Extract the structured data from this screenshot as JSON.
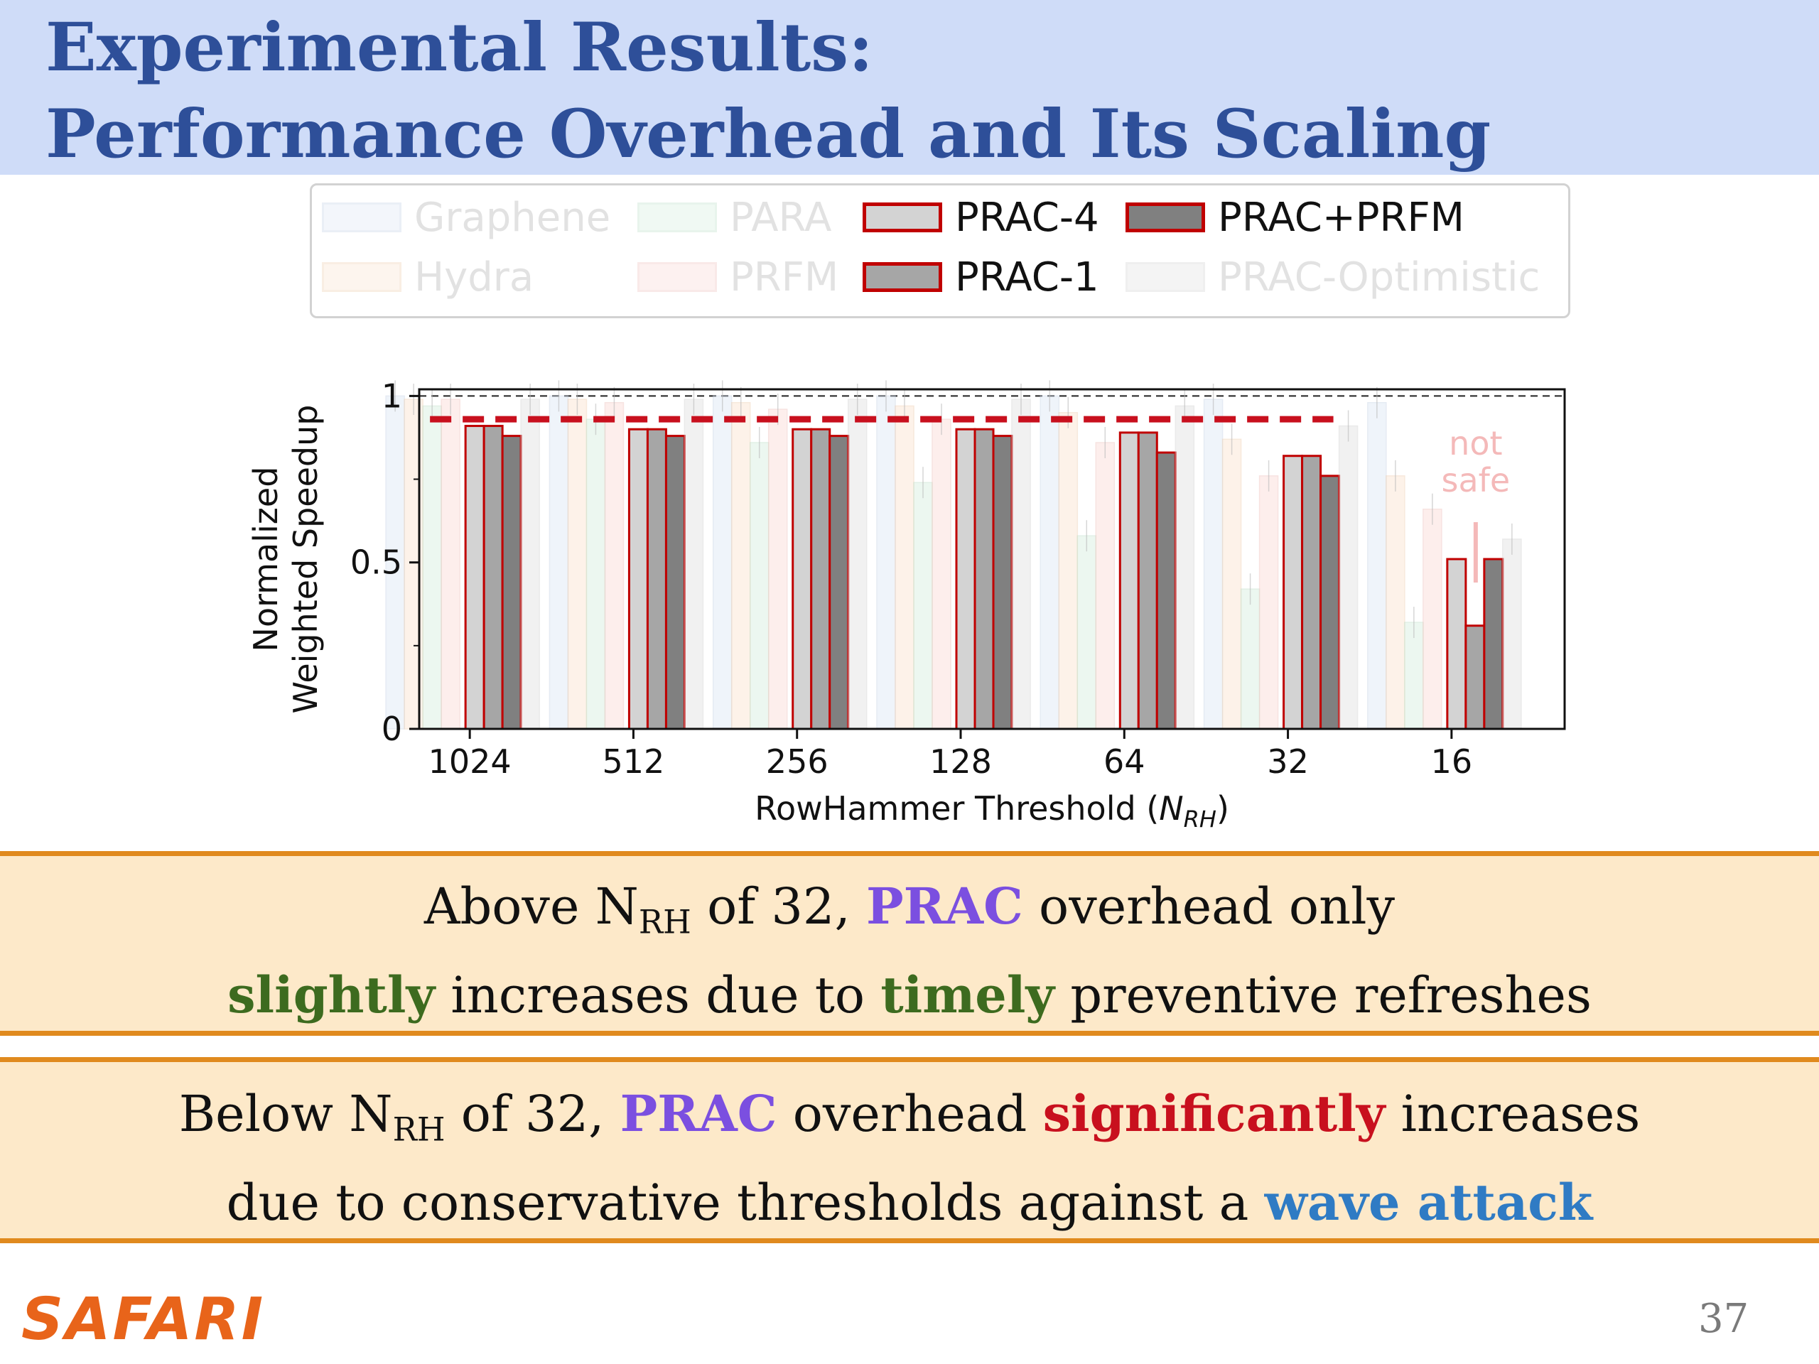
{
  "title": {
    "line1": "Experimental Results:",
    "line2": "Performance Overhead and Its Scaling"
  },
  "legend": [
    {
      "label": "Graphene",
      "state": "faded",
      "fill": "#dde7f4",
      "stroke": "#c6d3e6"
    },
    {
      "label": "PARA",
      "state": "faded",
      "fill": "#d7efdf",
      "stroke": "#bfe0c9"
    },
    {
      "label": "PRAC-4",
      "state": "active",
      "fill": "#d3d3d3",
      "stroke": "#c00000"
    },
    {
      "label": "PRAC+PRFM",
      "state": "active",
      "fill": "#808080",
      "stroke": "#c00000"
    },
    {
      "label": "Hydra",
      "state": "faded",
      "fill": "#fbe3cf",
      "stroke": "#efcfb2"
    },
    {
      "label": "PRFM",
      "state": "faded",
      "fill": "#fbdad7",
      "stroke": "#efc2be"
    },
    {
      "label": "PRAC-1",
      "state": "active",
      "fill": "#a6a6a6",
      "stroke": "#c00000"
    },
    {
      "label": "PRAC-Optimistic",
      "state": "faded",
      "fill": "#e2e2e2",
      "stroke": "#d2d2d2"
    }
  ],
  "chart_data": {
    "type": "bar",
    "xlabel_main": "RowHammer Threshold (",
    "xlabel_var": "N",
    "xlabel_sub": "RH",
    "xlabel_end": ")",
    "ylabel": [
      "Normalized",
      "Weighted Speedup"
    ],
    "ylim": [
      0,
      1.02
    ],
    "yticks": [
      "0",
      "0.5",
      "1"
    ],
    "categories": [
      "1024",
      "512",
      "256",
      "128",
      "64",
      "32",
      "16"
    ],
    "reference_line": 1.0,
    "prac_optimistic_line": {
      "value": 0.93,
      "color": "#c8101e",
      "from": "1024",
      "to": "32"
    },
    "annotation": {
      "lines": [
        "not",
        "safe"
      ],
      "category": "16"
    },
    "series": [
      {
        "name": "Graphene",
        "faded": true,
        "values": [
          1.0,
          1.0,
          1.0,
          1.0,
          1.0,
          0.99,
          0.98
        ]
      },
      {
        "name": "Hydra",
        "faded": true,
        "values": [
          0.99,
          0.99,
          0.98,
          0.97,
          0.95,
          0.87,
          0.76
        ]
      },
      {
        "name": "PARA",
        "faded": true,
        "values": [
          0.97,
          0.93,
          0.86,
          0.74,
          0.58,
          0.42,
          0.32
        ]
      },
      {
        "name": "PRFM",
        "faded": true,
        "values": [
          0.99,
          0.98,
          0.96,
          0.93,
          0.86,
          0.76,
          0.66
        ]
      },
      {
        "name": "PRAC-4",
        "faded": false,
        "values": [
          0.91,
          0.9,
          0.9,
          0.9,
          0.89,
          0.82,
          0.51
        ]
      },
      {
        "name": "PRAC-1",
        "faded": false,
        "values": [
          0.91,
          0.9,
          0.9,
          0.9,
          0.89,
          0.82,
          0.31
        ]
      },
      {
        "name": "PRAC+PRFM",
        "faded": false,
        "values": [
          0.88,
          0.88,
          0.88,
          0.88,
          0.83,
          0.76,
          0.51
        ]
      },
      {
        "name": "PRAC-Optimistic",
        "faded": true,
        "values": [
          0.99,
          0.99,
          0.99,
          0.99,
          0.97,
          0.91,
          0.57
        ]
      }
    ]
  },
  "callout1": {
    "l1a": "Above N",
    "l1sub": "RH",
    "l1b": " of 32, ",
    "l1prac": "PRAC",
    "l1c": " overhead only",
    "l2a": "slightly",
    "l2b": " increases due to ",
    "l2c": "timely",
    "l2d": " preventive refreshes"
  },
  "callout2": {
    "l1a": "Below N",
    "l1sub": "RH",
    "l1b": " of 32, ",
    "l1prac": "PRAC",
    "l1c": " overhead ",
    "l1d": "significantly",
    "l1e": " increases",
    "l2a": "due to conservative thresholds against a ",
    "l2b": "wave attack"
  },
  "footer": {
    "logo": "SAFARI",
    "page": "37"
  }
}
